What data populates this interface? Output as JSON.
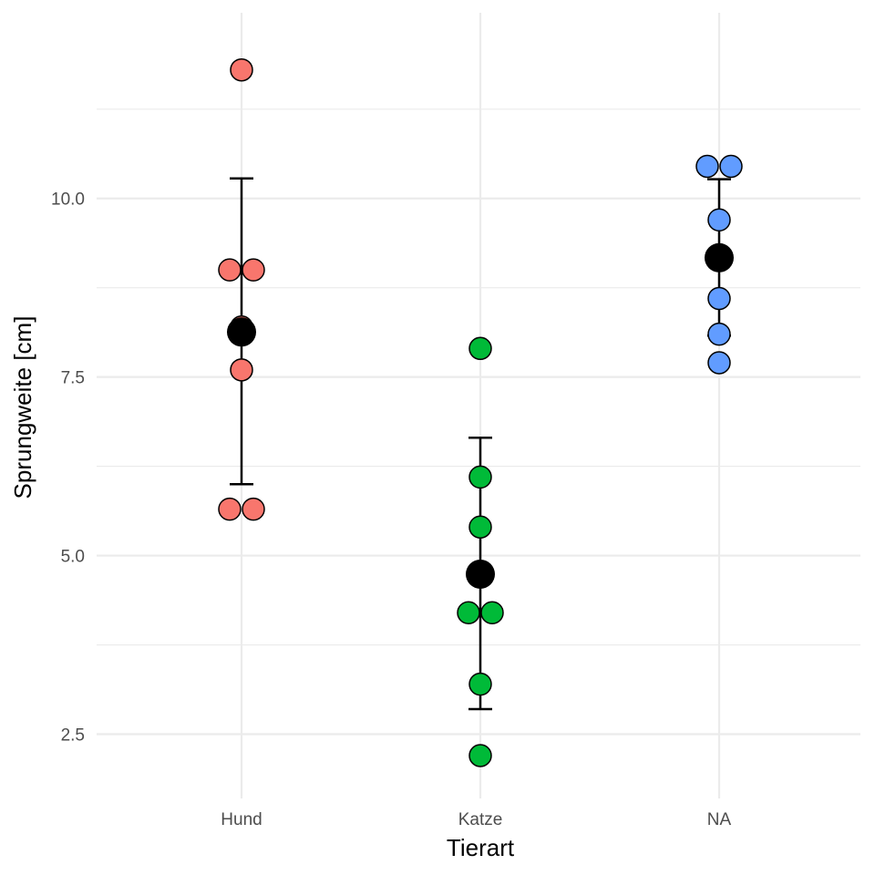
{
  "chart_data": {
    "type": "scatter",
    "xlabel": "Tierart",
    "ylabel": "Sprungweite [cm]",
    "categories": [
      "Hund",
      "Katze",
      "NA"
    ],
    "ylim": [
      1.6,
      12.6
    ],
    "yticks": [
      2.5,
      5.0,
      7.5,
      10.0
    ],
    "ytick_labels": [
      "2.5",
      "5.0",
      "7.5",
      "10.0"
    ],
    "grid": true,
    "colors": {
      "Hund": "#F8766D",
      "Katze": "#00BA38",
      "NA": "#619CFF",
      "summary": "#000000",
      "grid": "#ebebeb"
    },
    "series": [
      {
        "name": "Hund",
        "points": [
          {
            "y": 11.8,
            "offset": 0
          },
          {
            "y": 9.0,
            "offset": -1
          },
          {
            "y": 9.0,
            "offset": 1
          },
          {
            "y": 8.2,
            "offset": 0
          },
          {
            "y": 7.6,
            "offset": 0
          },
          {
            "y": 5.65,
            "offset": -1
          },
          {
            "y": 5.65,
            "offset": 1
          }
        ],
        "mean": 8.13,
        "error_low": 6.0,
        "error_high": 10.28
      },
      {
        "name": "Katze",
        "points": [
          {
            "y": 7.9,
            "offset": 0
          },
          {
            "y": 6.1,
            "offset": 0
          },
          {
            "y": 5.4,
            "offset": 0
          },
          {
            "y": 4.2,
            "offset": -1
          },
          {
            "y": 4.2,
            "offset": 1
          },
          {
            "y": 3.2,
            "offset": 0
          },
          {
            "y": 2.2,
            "offset": 0
          }
        ],
        "mean": 4.74,
        "error_low": 2.85,
        "error_high": 6.65
      },
      {
        "name": "NA",
        "points": [
          {
            "y": 10.45,
            "offset": -1
          },
          {
            "y": 10.45,
            "offset": 1
          },
          {
            "y": 9.7,
            "offset": 0
          },
          {
            "y": 9.15,
            "offset": 0
          },
          {
            "y": 8.6,
            "offset": 0
          },
          {
            "y": 8.1,
            "offset": 0
          },
          {
            "y": 7.7,
            "offset": 0
          }
        ],
        "mean": 9.17,
        "error_low": 8.08,
        "error_high": 10.27
      }
    ]
  }
}
